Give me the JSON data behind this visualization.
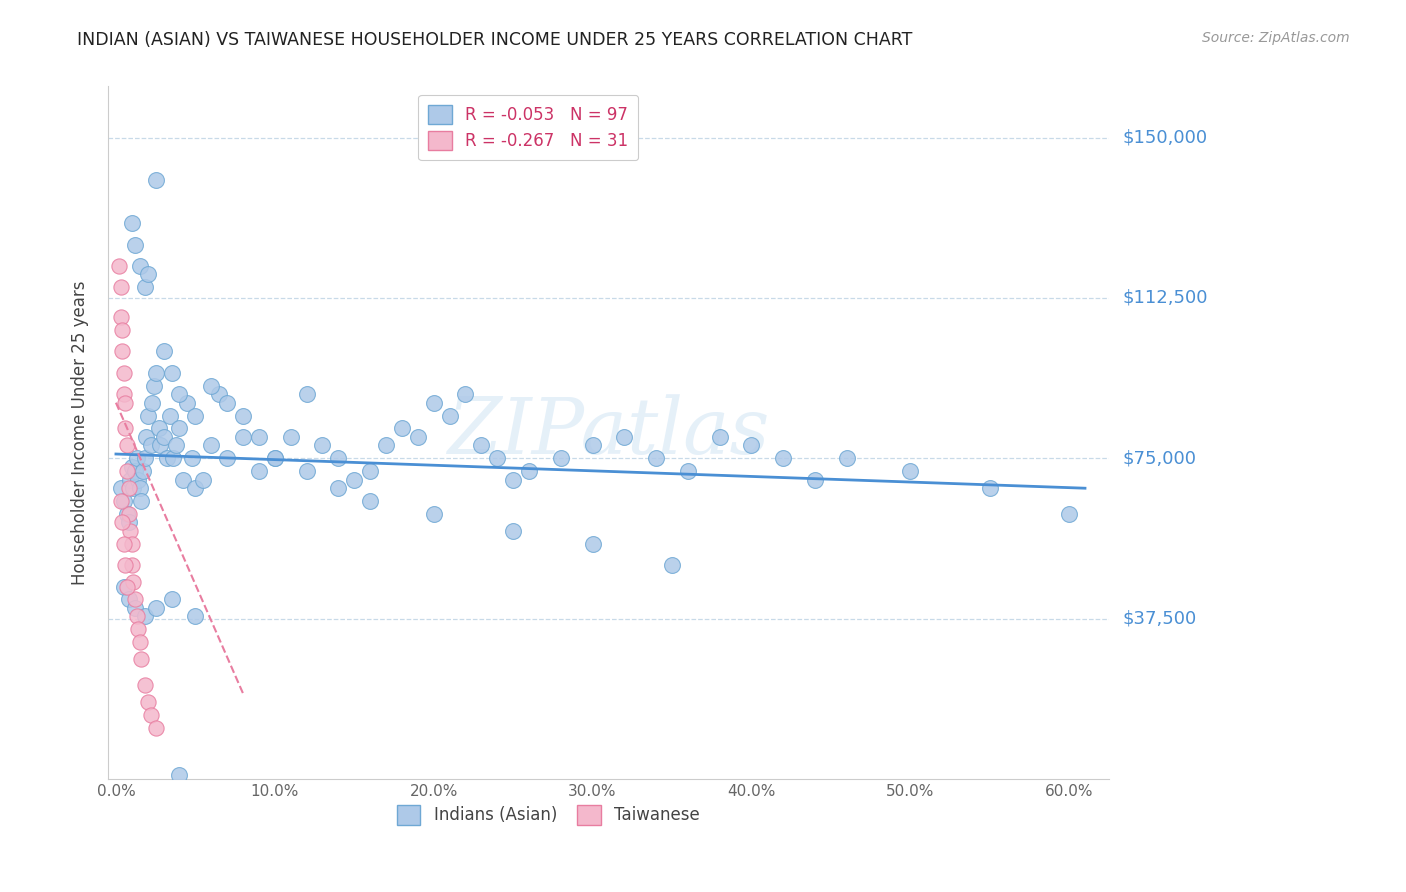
{
  "title": "INDIAN (ASIAN) VS TAIWANESE HOUSEHOLDER INCOME UNDER 25 YEARS CORRELATION CHART",
  "source": "Source: ZipAtlas.com",
  "ylabel": "Householder Income Under 25 years",
  "xlabel_ticks": [
    "0.0%",
    "10.0%",
    "20.0%",
    "30.0%",
    "40.0%",
    "50.0%",
    "60.0%"
  ],
  "xlabel_vals": [
    0.0,
    0.1,
    0.2,
    0.3,
    0.4,
    0.5,
    0.6
  ],
  "ytick_labels": [
    "$37,500",
    "$75,000",
    "$112,500",
    "$150,000"
  ],
  "ytick_vals": [
    37500,
    75000,
    112500,
    150000
  ],
  "ylim": [
    0,
    162000
  ],
  "xlim": [
    -0.005,
    0.625
  ],
  "watermark": "ZIPatlas",
  "indian_color": "#aec9e8",
  "indian_edge": "#6fa8d4",
  "taiwan_color": "#f4b8cc",
  "taiwan_edge": "#e87da0",
  "trendline_indian_color": "#4a8fd4",
  "trendline_taiwan_color": "#e87da0",
  "trendline_indian_x0": 0.0,
  "trendline_indian_y0": 76000,
  "trendline_indian_x1": 0.61,
  "trendline_indian_y1": 68000,
  "trendline_taiwan_x0": 0.0,
  "trendline_taiwan_y0": 88000,
  "trendline_taiwan_x1": 0.08,
  "trendline_taiwan_y1": 20000,
  "indian_pts_x": [
    0.003,
    0.005,
    0.007,
    0.008,
    0.009,
    0.01,
    0.011,
    0.012,
    0.013,
    0.014,
    0.015,
    0.016,
    0.017,
    0.018,
    0.019,
    0.02,
    0.022,
    0.023,
    0.024,
    0.025,
    0.027,
    0.028,
    0.03,
    0.032,
    0.034,
    0.036,
    0.038,
    0.04,
    0.042,
    0.045,
    0.048,
    0.05,
    0.055,
    0.06,
    0.065,
    0.07,
    0.08,
    0.09,
    0.1,
    0.11,
    0.12,
    0.13,
    0.14,
    0.15,
    0.16,
    0.17,
    0.18,
    0.19,
    0.2,
    0.21,
    0.22,
    0.23,
    0.24,
    0.25,
    0.26,
    0.28,
    0.3,
    0.32,
    0.34,
    0.36,
    0.38,
    0.4,
    0.42,
    0.44,
    0.46,
    0.5,
    0.55,
    0.6,
    0.01,
    0.012,
    0.015,
    0.018,
    0.02,
    0.025,
    0.03,
    0.035,
    0.04,
    0.05,
    0.06,
    0.07,
    0.08,
    0.09,
    0.1,
    0.12,
    0.14,
    0.16,
    0.2,
    0.25,
    0.3,
    0.35,
    0.005,
    0.008,
    0.012,
    0.018,
    0.025,
    0.035,
    0.05,
    0.04
  ],
  "indian_pts_y": [
    68000,
    65000,
    62000,
    60000,
    70000,
    73000,
    68000,
    72000,
    75000,
    70000,
    68000,
    65000,
    72000,
    75000,
    80000,
    85000,
    78000,
    88000,
    92000,
    95000,
    82000,
    78000,
    80000,
    75000,
    85000,
    75000,
    78000,
    82000,
    70000,
    88000,
    75000,
    68000,
    70000,
    78000,
    90000,
    75000,
    80000,
    72000,
    75000,
    80000,
    90000,
    78000,
    75000,
    70000,
    72000,
    78000,
    82000,
    80000,
    88000,
    85000,
    90000,
    78000,
    75000,
    70000,
    72000,
    75000,
    78000,
    80000,
    75000,
    72000,
    80000,
    78000,
    75000,
    70000,
    75000,
    72000,
    68000,
    62000,
    130000,
    125000,
    120000,
    115000,
    118000,
    140000,
    100000,
    95000,
    90000,
    85000,
    92000,
    88000,
    85000,
    80000,
    75000,
    72000,
    68000,
    65000,
    62000,
    58000,
    55000,
    50000,
    45000,
    42000,
    40000,
    38000,
    40000,
    42000,
    38000,
    1000
  ],
  "taiwan_pts_x": [
    0.002,
    0.003,
    0.003,
    0.004,
    0.004,
    0.005,
    0.005,
    0.006,
    0.006,
    0.007,
    0.007,
    0.008,
    0.008,
    0.009,
    0.01,
    0.01,
    0.011,
    0.012,
    0.013,
    0.014,
    0.015,
    0.016,
    0.018,
    0.02,
    0.022,
    0.025,
    0.003,
    0.004,
    0.005,
    0.006,
    0.007
  ],
  "taiwan_pts_y": [
    120000,
    115000,
    108000,
    105000,
    100000,
    95000,
    90000,
    88000,
    82000,
    78000,
    72000,
    68000,
    62000,
    58000,
    55000,
    50000,
    46000,
    42000,
    38000,
    35000,
    32000,
    28000,
    22000,
    18000,
    15000,
    12000,
    65000,
    60000,
    55000,
    50000,
    45000
  ]
}
